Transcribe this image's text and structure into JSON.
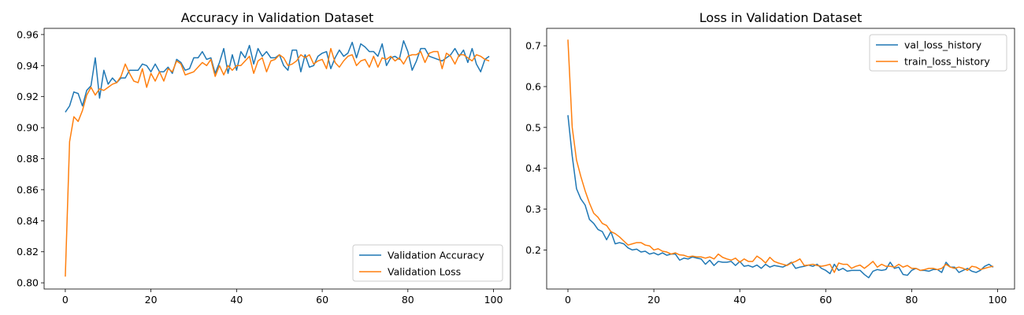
{
  "chart_data": [
    {
      "type": "line",
      "title": "Accuracy in Validation Dataset",
      "xlabel": "",
      "ylabel": "",
      "xlim": [
        -4.95,
        103.95
      ],
      "ylim": [
        0.796,
        0.964
      ],
      "xticks": [
        0,
        20,
        40,
        60,
        80,
        100
      ],
      "yticks": [
        0.8,
        0.82,
        0.84,
        0.86,
        0.88,
        0.9,
        0.92,
        0.94,
        0.96
      ],
      "ytick_labels": [
        "0.80",
        "0.82",
        "0.84",
        "0.86",
        "0.88",
        "0.90",
        "0.92",
        "0.94",
        "0.96"
      ],
      "legend_position": "bottom-right",
      "grid": false,
      "series": [
        {
          "name": "Validation Accuracy",
          "color": "#1f77b4",
          "x": [
            0,
            1,
            2,
            3,
            4,
            5,
            6,
            7,
            8,
            9,
            10,
            11,
            12,
            13,
            14,
            15,
            16,
            17,
            18,
            19,
            20,
            21,
            22,
            23,
            24,
            25,
            26,
            27,
            28,
            29,
            30,
            31,
            32,
            33,
            34,
            35,
            36,
            37,
            38,
            39,
            40,
            41,
            42,
            43,
            44,
            45,
            46,
            47,
            48,
            49,
            50,
            51,
            52,
            53,
            54,
            55,
            56,
            57,
            58,
            59,
            60,
            61,
            62,
            63,
            64,
            65,
            66,
            67,
            68,
            69,
            70,
            71,
            72,
            73,
            74,
            75,
            76,
            77,
            78,
            79,
            80,
            81,
            82,
            83,
            84,
            85,
            86,
            87,
            88,
            89,
            90,
            91,
            92,
            93,
            94,
            95,
            96,
            97,
            98,
            99
          ],
          "values": [
            0.91,
            0.914,
            0.923,
            0.922,
            0.914,
            0.924,
            0.927,
            0.945,
            0.919,
            0.937,
            0.928,
            0.932,
            0.929,
            0.932,
            0.932,
            0.937,
            0.937,
            0.937,
            0.941,
            0.94,
            0.936,
            0.941,
            0.936,
            0.936,
            0.939,
            0.935,
            0.944,
            0.942,
            0.937,
            0.938,
            0.945,
            0.945,
            0.949,
            0.944,
            0.945,
            0.935,
            0.942,
            0.951,
            0.935,
            0.947,
            0.937,
            0.949,
            0.945,
            0.953,
            0.941,
            0.951,
            0.946,
            0.949,
            0.945,
            0.945,
            0.947,
            0.94,
            0.937,
            0.95,
            0.95,
            0.936,
            0.947,
            0.939,
            0.94,
            0.946,
            0.948,
            0.949,
            0.938,
            0.945,
            0.95,
            0.946,
            0.948,
            0.955,
            0.945,
            0.954,
            0.952,
            0.949,
            0.949,
            0.946,
            0.954,
            0.94,
            0.945,
            0.946,
            0.944,
            0.956,
            0.949,
            0.937,
            0.943,
            0.951,
            0.951,
            0.946,
            0.945,
            0.944,
            0.943,
            0.945,
            0.947,
            0.951,
            0.946,
            0.95,
            0.942,
            0.951,
            0.941,
            0.936,
            0.944,
            0.946
          ]
        },
        {
          "name": "Validation Loss",
          "color": "#ff7f0e",
          "x": [
            0,
            1,
            2,
            3,
            4,
            5,
            6,
            7,
            8,
            9,
            10,
            11,
            12,
            13,
            14,
            15,
            16,
            17,
            18,
            19,
            20,
            21,
            22,
            23,
            24,
            25,
            26,
            27,
            28,
            29,
            30,
            31,
            32,
            33,
            34,
            35,
            36,
            37,
            38,
            39,
            40,
            41,
            42,
            43,
            44,
            45,
            46,
            47,
            48,
            49,
            50,
            51,
            52,
            53,
            54,
            55,
            56,
            57,
            58,
            59,
            60,
            61,
            62,
            63,
            64,
            65,
            66,
            67,
            68,
            69,
            70,
            71,
            72,
            73,
            74,
            75,
            76,
            77,
            78,
            79,
            80,
            81,
            82,
            83,
            84,
            85,
            86,
            87,
            88,
            89,
            90,
            91,
            92,
            93,
            94,
            95,
            96,
            97,
            98,
            99
          ],
          "values": [
            0.804,
            0.891,
            0.907,
            0.904,
            0.911,
            0.921,
            0.926,
            0.921,
            0.925,
            0.924,
            0.926,
            0.928,
            0.929,
            0.933,
            0.941,
            0.935,
            0.93,
            0.929,
            0.938,
            0.926,
            0.935,
            0.93,
            0.936,
            0.93,
            0.938,
            0.936,
            0.943,
            0.941,
            0.934,
            0.935,
            0.936,
            0.939,
            0.942,
            0.94,
            0.944,
            0.933,
            0.94,
            0.934,
            0.94,
            0.937,
            0.94,
            0.94,
            0.943,
            0.946,
            0.935,
            0.943,
            0.945,
            0.936,
            0.943,
            0.944,
            0.947,
            0.945,
            0.94,
            0.941,
            0.943,
            0.947,
            0.945,
            0.947,
            0.941,
            0.943,
            0.944,
            0.938,
            0.951,
            0.942,
            0.939,
            0.943,
            0.946,
            0.947,
            0.94,
            0.943,
            0.944,
            0.939,
            0.946,
            0.939,
            0.945,
            0.944,
            0.946,
            0.943,
            0.945,
            0.941,
            0.946,
            0.947,
            0.947,
            0.949,
            0.942,
            0.948,
            0.949,
            0.949,
            0.938,
            0.948,
            0.946,
            0.941,
            0.947,
            0.947,
            0.945,
            0.943,
            0.947,
            0.946,
            0.944,
            0.943
          ]
        }
      ]
    },
    {
      "type": "line",
      "title": "Loss in Validation Dataset",
      "xlabel": "",
      "ylabel": "",
      "xlim": [
        -4.95,
        103.95
      ],
      "ylim": [
        0.1044,
        0.7426
      ],
      "xticks": [
        0,
        20,
        40,
        60,
        80,
        100
      ],
      "yticks": [
        0.2,
        0.3,
        0.4,
        0.5,
        0.6,
        0.7
      ],
      "ytick_labels": [
        "0.2",
        "0.3",
        "0.4",
        "0.5",
        "0.6",
        "0.7"
      ],
      "legend_position": "top-right",
      "grid": false,
      "series": [
        {
          "name": "val_loss_history",
          "color": "#1f77b4",
          "x": [
            0,
            1,
            2,
            3,
            4,
            5,
            6,
            7,
            8,
            9,
            10,
            11,
            12,
            13,
            14,
            15,
            16,
            17,
            18,
            19,
            20,
            21,
            22,
            23,
            24,
            25,
            26,
            27,
            28,
            29,
            30,
            31,
            32,
            33,
            34,
            35,
            36,
            37,
            38,
            39,
            40,
            41,
            42,
            43,
            44,
            45,
            46,
            47,
            48,
            49,
            50,
            51,
            52,
            53,
            54,
            55,
            56,
            57,
            58,
            59,
            60,
            61,
            62,
            63,
            64,
            65,
            66,
            67,
            68,
            69,
            70,
            71,
            72,
            73,
            74,
            75,
            76,
            77,
            78,
            79,
            80,
            81,
            82,
            83,
            84,
            85,
            86,
            87,
            88,
            89,
            90,
            91,
            92,
            93,
            94,
            95,
            96,
            97,
            98,
            99
          ],
          "values": [
            0.53,
            0.43,
            0.35,
            0.325,
            0.31,
            0.275,
            0.265,
            0.25,
            0.245,
            0.225,
            0.245,
            0.215,
            0.218,
            0.215,
            0.205,
            0.2,
            0.202,
            0.195,
            0.197,
            0.19,
            0.193,
            0.188,
            0.193,
            0.187,
            0.19,
            0.19,
            0.175,
            0.18,
            0.178,
            0.183,
            0.18,
            0.178,
            0.165,
            0.175,
            0.162,
            0.172,
            0.17,
            0.17,
            0.172,
            0.162,
            0.172,
            0.16,
            0.162,
            0.158,
            0.163,
            0.155,
            0.165,
            0.158,
            0.162,
            0.16,
            0.158,
            0.163,
            0.17,
            0.155,
            0.158,
            0.16,
            0.163,
            0.16,
            0.165,
            0.155,
            0.15,
            0.142,
            0.165,
            0.15,
            0.155,
            0.148,
            0.15,
            0.15,
            0.15,
            0.14,
            0.132,
            0.148,
            0.152,
            0.15,
            0.152,
            0.17,
            0.155,
            0.158,
            0.14,
            0.138,
            0.15,
            0.155,
            0.15,
            0.15,
            0.148,
            0.152,
            0.152,
            0.145,
            0.17,
            0.158,
            0.158,
            0.145,
            0.15,
            0.155,
            0.148,
            0.145,
            0.15,
            0.16,
            0.165,
            0.158
          ]
        },
        {
          "name": "train_loss_history",
          "color": "#ff7f0e",
          "x": [
            0,
            1,
            2,
            3,
            4,
            5,
            6,
            7,
            8,
            9,
            10,
            11,
            12,
            13,
            14,
            15,
            16,
            17,
            18,
            19,
            20,
            21,
            22,
            23,
            24,
            25,
            26,
            27,
            28,
            29,
            30,
            31,
            32,
            33,
            34,
            35,
            36,
            37,
            38,
            39,
            40,
            41,
            42,
            43,
            44,
            45,
            46,
            47,
            48,
            49,
            50,
            51,
            52,
            53,
            54,
            55,
            56,
            57,
            58,
            59,
            60,
            61,
            62,
            63,
            64,
            65,
            66,
            67,
            68,
            69,
            70,
            71,
            72,
            73,
            74,
            75,
            76,
            77,
            78,
            79,
            80,
            81,
            82,
            83,
            84,
            85,
            86,
            87,
            88,
            89,
            90,
            91,
            92,
            93,
            94,
            95,
            96,
            97,
            98,
            99
          ],
          "values": [
            0.715,
            0.5,
            0.42,
            0.38,
            0.345,
            0.315,
            0.29,
            0.28,
            0.265,
            0.26,
            0.245,
            0.24,
            0.232,
            0.222,
            0.212,
            0.215,
            0.218,
            0.218,
            0.212,
            0.21,
            0.2,
            0.203,
            0.197,
            0.195,
            0.19,
            0.193,
            0.188,
            0.187,
            0.183,
            0.185,
            0.183,
            0.183,
            0.18,
            0.183,
            0.178,
            0.19,
            0.182,
            0.178,
            0.175,
            0.18,
            0.17,
            0.178,
            0.172,
            0.172,
            0.185,
            0.178,
            0.168,
            0.182,
            0.172,
            0.168,
            0.165,
            0.162,
            0.168,
            0.172,
            0.178,
            0.162,
            0.163,
            0.165,
            0.162,
            0.16,
            0.162,
            0.165,
            0.145,
            0.168,
            0.165,
            0.165,
            0.155,
            0.16,
            0.163,
            0.155,
            0.163,
            0.172,
            0.158,
            0.165,
            0.16,
            0.16,
            0.158,
            0.165,
            0.158,
            0.162,
            0.155,
            0.155,
            0.15,
            0.152,
            0.155,
            0.155,
            0.152,
            0.155,
            0.165,
            0.158,
            0.155,
            0.158,
            0.155,
            0.15,
            0.16,
            0.158,
            0.152,
            0.155,
            0.158,
            0.16
          ]
        }
      ]
    }
  ]
}
